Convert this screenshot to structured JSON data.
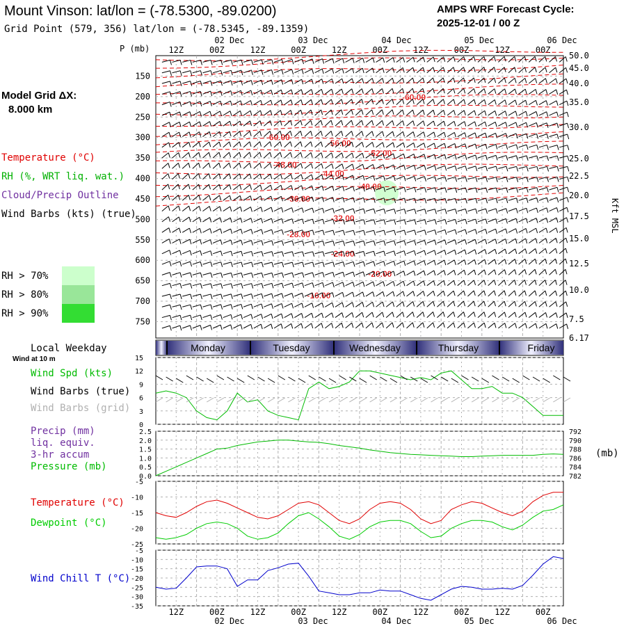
{
  "header": {
    "title": "Mount Vinson:  lat/lon = (-78.5300, -89.0200)",
    "subtitle": "Grid Point (579, 356) lat/lon = (-78.5345, -89.1359)",
    "cycle_line1": "AMPS WRF Forecast Cycle:",
    "cycle_line2": "2025-12-01 / 00  Z"
  },
  "left_panel": {
    "grid_label": "Model Grid ΔX:",
    "grid_value": "8.000 km",
    "legend": [
      {
        "text": "Temperature (°C)",
        "color": "#e00000"
      },
      {
        "text": "RH (%, WRT liq. wat.)",
        "color": "#00b000"
      },
      {
        "text": "Cloud/Precip Outline",
        "color": "#7030a0"
      },
      {
        "text": "Wind Barbs (kts) (true)",
        "color": "#000000"
      }
    ],
    "rh_legend": [
      {
        "label": "RH > 70%",
        "color": "#ccffcc"
      },
      {
        "label": "RH > 80%",
        "color": "#99e699"
      },
      {
        "label": "RH > 90%",
        "color": "#33dd33"
      }
    ]
  },
  "time_axis": {
    "top_hours": [
      "12Z",
      "00Z",
      "12Z",
      "00Z",
      "12Z",
      "00Z",
      "12Z",
      "00Z",
      "12Z",
      "00Z"
    ],
    "dates": [
      "02 Dec",
      "03 Dec",
      "04 Dec",
      "05 Dec",
      "06 Dec"
    ],
    "bottom_hours": [
      "12Z",
      "00Z",
      "12Z",
      "00Z",
      "12Z",
      "00Z",
      "12Z",
      "00Z",
      "12Z",
      "00Z"
    ]
  },
  "weekday": {
    "label": "Local Weekday",
    "sublabel": "Wind at 10 m",
    "days": [
      "Monday",
      "Tuesday",
      "Wednesday",
      "Thursday",
      "Friday"
    ]
  },
  "colors": {
    "temperature": "#e00000",
    "rh": "#00b000",
    "cloud": "#7030a0",
    "wind_speed": "#00bb00",
    "dewpoint": "#00cc00",
    "wind_chill": "#0000cc",
    "grid": "#b0b0b0",
    "grid_barbs": "#b0b0b0",
    "weekday_dark": "#30307a",
    "weekday_light": "#f0f0ff"
  },
  "chart_data": [
    {
      "type": "heatmap",
      "description_id": "vertical-profile",
      "ylabel": "P (mb)",
      "right_label": "Kft MSL",
      "y_ticks": [
        150,
        200,
        250,
        300,
        350,
        400,
        450,
        500,
        550,
        600,
        650,
        700,
        750
      ],
      "y_right_ticks": [
        "50.0",
        "45.0",
        "40.0",
        "35.0",
        "30.0",
        "25.0",
        "22.5",
        "20.0",
        "17.5",
        "15.0",
        "12.5",
        "10.0",
        "7.5",
        "6.17"
      ],
      "isotherm_labels": [
        {
          "text": "-60.00",
          "t": 76,
          "p": 202
        },
        {
          "text": "-60.00",
          "t": 36,
          "p": 300
        },
        {
          "text": "-56.00",
          "t": 54,
          "p": 314
        },
        {
          "text": "-52.00",
          "t": 66,
          "p": 339
        },
        {
          "text": "-48.00",
          "t": 38,
          "p": 367
        },
        {
          "text": "-44.00",
          "t": 52,
          "p": 389
        },
        {
          "text": "-40.00",
          "t": 63,
          "p": 420
        },
        {
          "text": "-36.00",
          "t": 42,
          "p": 450
        },
        {
          "text": "-32.00",
          "t": 55,
          "p": 498
        },
        {
          "text": "-28.00",
          "t": 42,
          "p": 537
        },
        {
          "text": "-24.00",
          "t": 55,
          "p": 584
        },
        {
          "text": "-20.00",
          "t": 66,
          "p": 634
        },
        {
          "text": "-16.00",
          "t": 48,
          "p": 686
        }
      ],
      "rh_patch": {
        "t": 68,
        "p": 435,
        "level": "RH > 70%"
      }
    },
    {
      "type": "line",
      "description_id": "wind-speed",
      "labels": [
        "Wind Spd (kts)",
        "Wind Barbs (true)",
        "Wind Barbs (grid)"
      ],
      "y_ticks": [
        0,
        3,
        6,
        9,
        12,
        15
      ],
      "ylim": [
        0,
        15
      ],
      "x": [
        0,
        3,
        6,
        9,
        12,
        15,
        18,
        21,
        24,
        27,
        30,
        33,
        36,
        39,
        42,
        45,
        48,
        51,
        54,
        57,
        60,
        63,
        66,
        69,
        72,
        75,
        78,
        81,
        84,
        87,
        90,
        93,
        96,
        99,
        102,
        105,
        108,
        111,
        114,
        117,
        120
      ],
      "values": [
        7,
        7.5,
        7,
        6,
        3,
        1.5,
        1,
        3,
        7,
        5,
        5.5,
        3,
        2,
        1.5,
        1,
        8,
        9.5,
        8,
        8.5,
        9.5,
        12,
        12,
        11.5,
        11,
        10.5,
        10,
        10.5,
        10,
        11.5,
        12,
        10,
        8,
        8,
        8.5,
        7,
        7,
        6,
        4,
        2,
        2,
        2
      ]
    },
    {
      "type": "line",
      "description_id": "precip-pressure",
      "labels": [
        "Precip (mm)",
        "liq. equiv.",
        "3-hr accum",
        "Pressure (mb)"
      ],
      "right_unit": "(mb)",
      "y_ticks": [
        "0.0",
        "0.5",
        "1.0",
        "1.5",
        "2.0",
        "2.5"
      ],
      "y_right_ticks": [
        782,
        784,
        786,
        788,
        790,
        792
      ],
      "ylim": [
        782,
        792
      ],
      "x": [
        0,
        3,
        6,
        9,
        12,
        15,
        18,
        21,
        24,
        27,
        30,
        33,
        36,
        39,
        42,
        45,
        48,
        51,
        54,
        57,
        60,
        63,
        66,
        69,
        72,
        75,
        78,
        81,
        84,
        87,
        90,
        93,
        96,
        99,
        102,
        105,
        108,
        111,
        114,
        117,
        120
      ],
      "values": [
        782,
        783,
        784,
        785,
        786,
        787,
        788,
        788.2,
        788.8,
        789.2,
        789.6,
        789.8,
        790,
        790,
        789.8,
        789.6,
        789.5,
        789.2,
        788.8,
        788.5,
        788.2,
        787.8,
        787.5,
        787.2,
        787,
        786.8,
        786.7,
        786.6,
        786.5,
        786.4,
        786.3,
        786.3,
        786.4,
        786.5,
        786.6,
        786.6,
        786.6,
        786.6,
        786.8,
        786.9,
        786.8
      ]
    },
    {
      "type": "line",
      "description_id": "temperature-dewpoint",
      "labels": [
        "Temperature (°C)",
        "Dewpoint (°C)"
      ],
      "y_ticks": [
        -25,
        -20,
        -15,
        -10,
        -5
      ],
      "ylim": [
        -25,
        -5
      ],
      "x": [
        0,
        3,
        6,
        9,
        12,
        15,
        18,
        21,
        24,
        27,
        30,
        33,
        36,
        39,
        42,
        45,
        48,
        51,
        54,
        57,
        60,
        63,
        66,
        69,
        72,
        75,
        78,
        81,
        84,
        87,
        90,
        93,
        96,
        99,
        102,
        105,
        108,
        111,
        114,
        117,
        120
      ],
      "series": [
        {
          "name": "Temperature (°C)",
          "values": [
            -15,
            -16,
            -16.5,
            -15,
            -13,
            -11.5,
            -11,
            -12,
            -13.5,
            -15,
            -16.5,
            -17,
            -16,
            -14,
            -12,
            -11.5,
            -12.5,
            -15,
            -17.5,
            -18.5,
            -17,
            -14,
            -12,
            -11.5,
            -12,
            -14,
            -17,
            -18.5,
            -17.5,
            -14,
            -12.5,
            -11.5,
            -12,
            -13.5,
            -15,
            -16,
            -14.5,
            -11.5,
            -9.5,
            -8.5,
            -8.5
          ]
        },
        {
          "name": "Dewpoint (°C)",
          "values": [
            -23,
            -23.5,
            -23,
            -22,
            -20,
            -18.5,
            -18,
            -18.5,
            -20,
            -22.5,
            -23.5,
            -23,
            -21.5,
            -18.5,
            -16,
            -15,
            -17,
            -19.5,
            -22.5,
            -23.5,
            -22,
            -19.5,
            -18,
            -17.5,
            -17.5,
            -18.5,
            -21,
            -23,
            -22.5,
            -20,
            -18.5,
            -17.5,
            -17.5,
            -18,
            -19.5,
            -20.5,
            -19,
            -16.5,
            -14.5,
            -14,
            -12.5
          ]
        }
      ]
    },
    {
      "type": "line",
      "description_id": "wind-chill",
      "labels": [
        "Wind Chill T (°C)"
      ],
      "y_ticks": [
        -35,
        -30,
        -25,
        -20,
        -15,
        -10,
        -5
      ],
      "ylim": [
        -35,
        -5
      ],
      "x": [
        0,
        3,
        6,
        9,
        12,
        15,
        18,
        21,
        24,
        27,
        30,
        33,
        36,
        39,
        42,
        45,
        48,
        51,
        54,
        57,
        60,
        63,
        66,
        69,
        72,
        75,
        78,
        81,
        84,
        87,
        90,
        93,
        96,
        99,
        102,
        105,
        108,
        111,
        114,
        117,
        120
      ],
      "values": [
        -25,
        -26,
        -25.5,
        -20,
        -14,
        -13.5,
        -13.5,
        -15,
        -24.5,
        -21,
        -21,
        -16,
        -14.5,
        -12.5,
        -12,
        -19,
        -27,
        -28,
        -29,
        -29,
        -28,
        -28,
        -26.5,
        -27,
        -27,
        -29,
        -31,
        -32,
        -29,
        -26,
        -24.5,
        -25,
        -26,
        -26,
        -25.5,
        -26,
        -24,
        -18.5,
        -12.5,
        -8.5,
        -9.5
      ]
    }
  ]
}
